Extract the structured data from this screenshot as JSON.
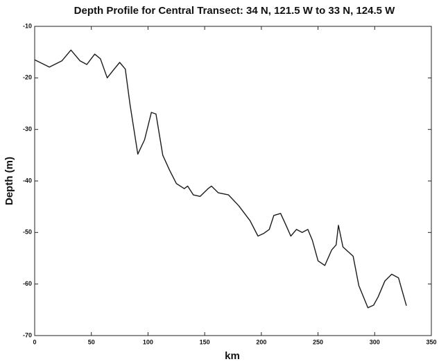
{
  "chart_data": {
    "type": "line",
    "title": "Depth Profile for Central Transect: 34 N, 121.5 W to 33 N, 124.5 W",
    "xlabel": "km",
    "ylabel": "Depth (m)",
    "x": [
      0,
      13,
      24,
      32,
      40,
      46,
      53,
      58,
      64,
      69,
      75,
      80,
      84,
      91,
      97,
      103,
      107,
      113,
      119,
      125,
      132,
      135,
      140,
      146,
      153,
      156,
      162,
      171,
      180,
      190,
      197,
      202,
      207,
      211,
      217,
      222,
      226,
      231,
      236,
      241,
      245,
      250,
      256,
      262,
      266,
      268,
      272,
      277,
      281,
      286,
      294,
      299,
      303,
      309,
      315,
      321,
      328
    ],
    "series": [
      {
        "color": "#1a1a1a",
        "values": [
          -16.5,
          -17.9,
          -16.7,
          -14.6,
          -16.7,
          -17.4,
          -15.4,
          -16.3,
          -20,
          -18.6,
          -17,
          -18.3,
          -25,
          -34.8,
          -32,
          -26.7,
          -27,
          -35,
          -37.9,
          -40.5,
          -41.5,
          -41,
          -42.7,
          -43,
          -41.5,
          -41,
          -42.3,
          -42.7,
          -44.8,
          -47.7,
          -50.7,
          -50.2,
          -49.4,
          -46.7,
          -46.3,
          -48.7,
          -50.7,
          -49.4,
          -50,
          -49.4,
          -51.5,
          -55.5,
          -56.4,
          -53.4,
          -52.4,
          -48.6,
          -52.8,
          -53.8,
          -54.6,
          -60.3,
          -64.6,
          -64.1,
          -62.5,
          -59.4,
          -58.1,
          -58.8,
          -64.2
        ]
      }
    ],
    "xlim": [
      0,
      350
    ],
    "xticks": [
      0,
      50,
      100,
      150,
      200,
      250,
      300,
      350
    ],
    "ylim": [
      -70,
      -10
    ],
    "yticks": [
      -70,
      -60,
      -50,
      -40,
      -30,
      -20,
      -10
    ],
    "grid": false
  }
}
